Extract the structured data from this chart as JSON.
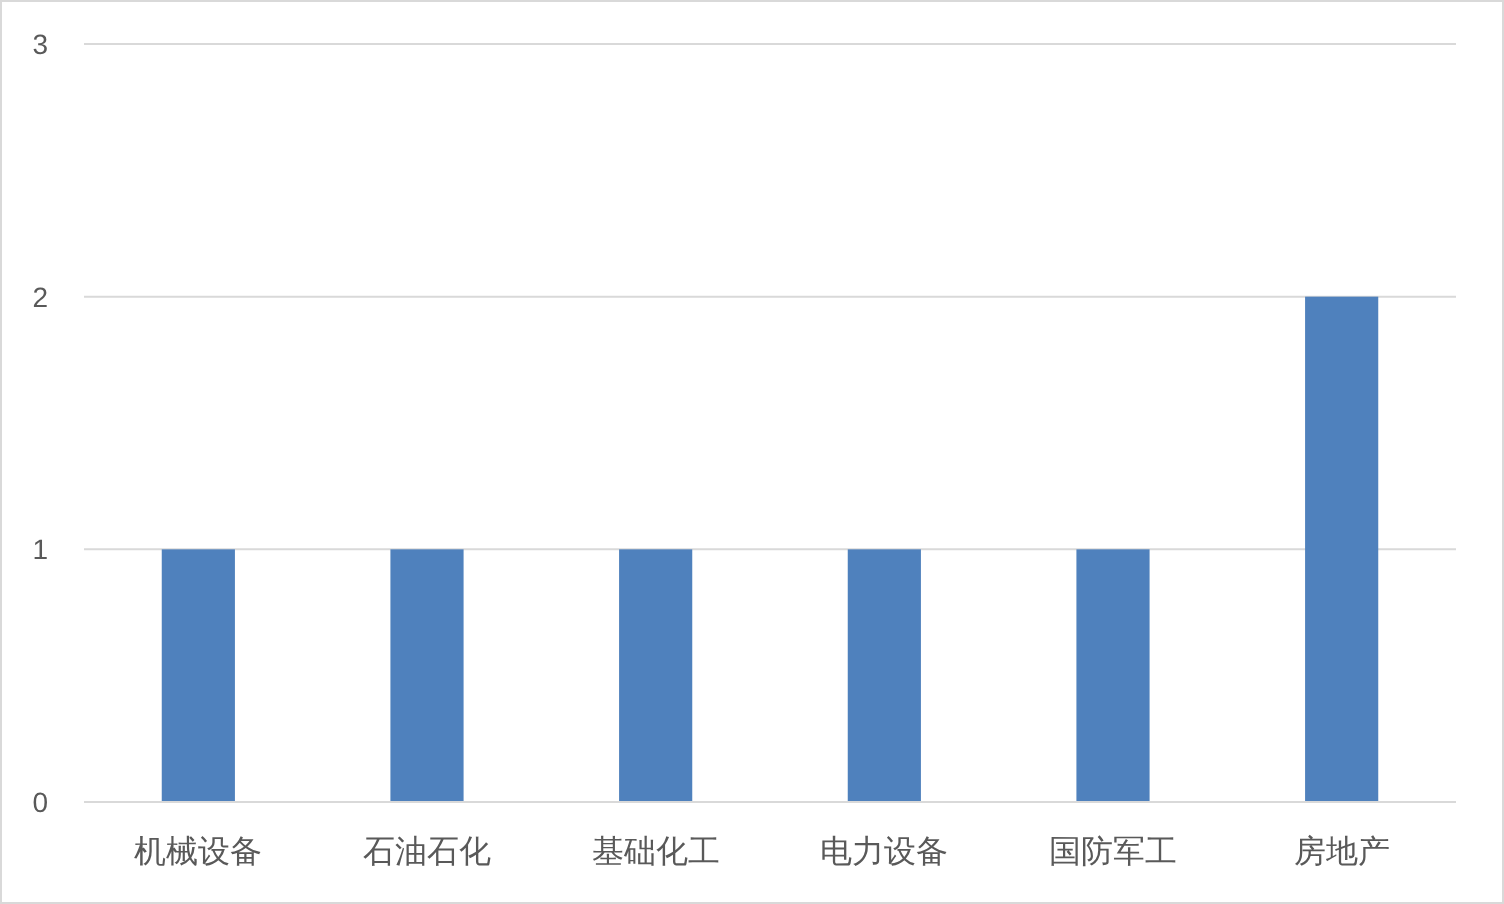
{
  "chart_data": {
    "type": "bar",
    "categories": [
      "机械设备",
      "石油石化",
      "基础化工",
      "电力设备",
      "国防军工",
      "房地产"
    ],
    "values": [
      1,
      1,
      1,
      1,
      1,
      2
    ],
    "color": "#4f81bd",
    "ylim": [
      0,
      3
    ],
    "yticks": [
      0,
      1,
      2,
      3
    ],
    "grid": "y"
  }
}
